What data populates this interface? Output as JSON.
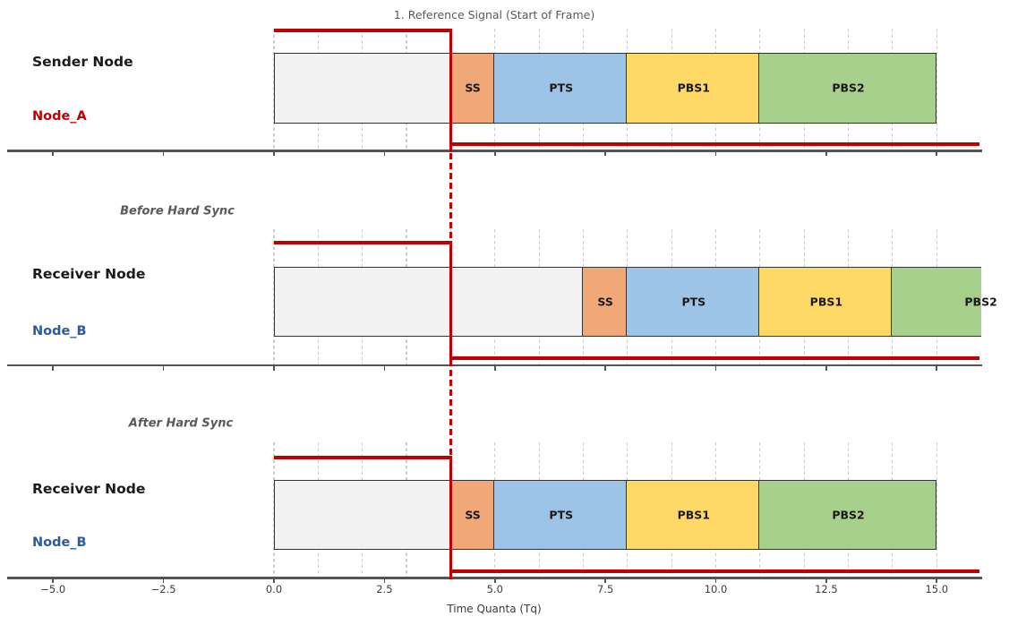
{
  "figure": {
    "title": "1. Reference Signal (Start of Frame)",
    "xlabel": "Time Quanta (Tq)"
  },
  "colors": {
    "signal": "#C00000",
    "grid": "#CCCCCC",
    "spine": "#555555",
    "seg_border": "#333333",
    "tick_text": "#3C3C3C",
    "gray_text": "#595959",
    "dark_text": "#1A1A1A"
  },
  "chart_data": {
    "type": "timeline",
    "title": "1. Reference Signal (Start of Frame)",
    "xlabel": "Time Quanta (Tq)",
    "xlim": [
      -6,
      16
    ],
    "xtick_values": [
      -5,
      -2.5,
      0,
      2.5,
      5,
      7.5,
      10,
      12.5,
      15
    ],
    "xtick_labels": [
      "−5.0",
      "−2.5",
      "0.0",
      "2.5",
      "5.0",
      "7.5",
      "10.0",
      "12.5",
      "15.0"
    ],
    "grid": {
      "axis": "x",
      "interval_tq": 1,
      "range": [
        0,
        15
      ],
      "style": "dashed",
      "per_panel": true
    },
    "legend_position": "none",
    "hard_sync_tq": 4,
    "reference_signal": {
      "start_tq": 0,
      "fall_tq": 4,
      "end_tq": 16,
      "description": "Reference signal is high from 0 to 4 Tq, falls at 4 Tq (Start of Frame), stays low to 16 Tq; repeated in each panel with a dashed drop line linking panels at 4 Tq"
    },
    "panels": [
      {
        "node_title": "Sender Node",
        "node_name": "Node_A",
        "name_color": "#C00000",
        "annotation": "",
        "segments": [
          {
            "label": "",
            "segment": "idle",
            "start": 0,
            "end": 4,
            "fill": "#F2F2F2"
          },
          {
            "label": "SS",
            "segment": "sync-seg",
            "start": 4,
            "end": 5,
            "fill": "#F1A878"
          },
          {
            "label": "PTS",
            "segment": "prop-seg",
            "start": 5,
            "end": 8,
            "fill": "#9DC3E6"
          },
          {
            "label": "PBS1",
            "segment": "phase-seg-1",
            "start": 8,
            "end": 11,
            "fill": "#FFD966"
          },
          {
            "label": "PBS2",
            "segment": "phase-seg-2",
            "start": 11,
            "end": 15,
            "fill": "#A8D08D"
          }
        ]
      },
      {
        "node_title": "Receiver Node",
        "node_name": "Node_B",
        "name_color": "#2B5A9E",
        "annotation": "Before Hard Sync",
        "segments": [
          {
            "label": "",
            "segment": "idle",
            "start": 0,
            "end": 7,
            "fill": "#F2F2F2"
          },
          {
            "label": "SS",
            "segment": "sync-seg",
            "start": 7,
            "end": 8,
            "fill": "#F1A878"
          },
          {
            "label": "PTS",
            "segment": "prop-seg",
            "start": 8,
            "end": 11,
            "fill": "#9DC3E6"
          },
          {
            "label": "PBS1",
            "segment": "phase-seg-1",
            "start": 11,
            "end": 14,
            "fill": "#FFD966"
          },
          {
            "label": "PBS2",
            "segment": "phase-seg-2",
            "start": 14,
            "end": 18,
            "fill": "#A8D08D",
            "clipped_at": 16
          }
        ]
      },
      {
        "node_title": "Receiver Node",
        "node_name": "Node_B",
        "name_color": "#2B5A9E",
        "annotation": "After Hard Sync",
        "segments": [
          {
            "label": "",
            "segment": "idle",
            "start": 0,
            "end": 4,
            "fill": "#F2F2F2"
          },
          {
            "label": "SS",
            "segment": "sync-seg",
            "start": 4,
            "end": 5,
            "fill": "#F1A878"
          },
          {
            "label": "PTS",
            "segment": "prop-seg",
            "start": 5,
            "end": 8,
            "fill": "#9DC3E6"
          },
          {
            "label": "PBS1",
            "segment": "phase-seg-1",
            "start": 8,
            "end": 11,
            "fill": "#FFD966"
          },
          {
            "label": "PBS2",
            "segment": "phase-seg-2",
            "start": 11,
            "end": 15,
            "fill": "#A8D08D"
          }
        ]
      }
    ]
  }
}
